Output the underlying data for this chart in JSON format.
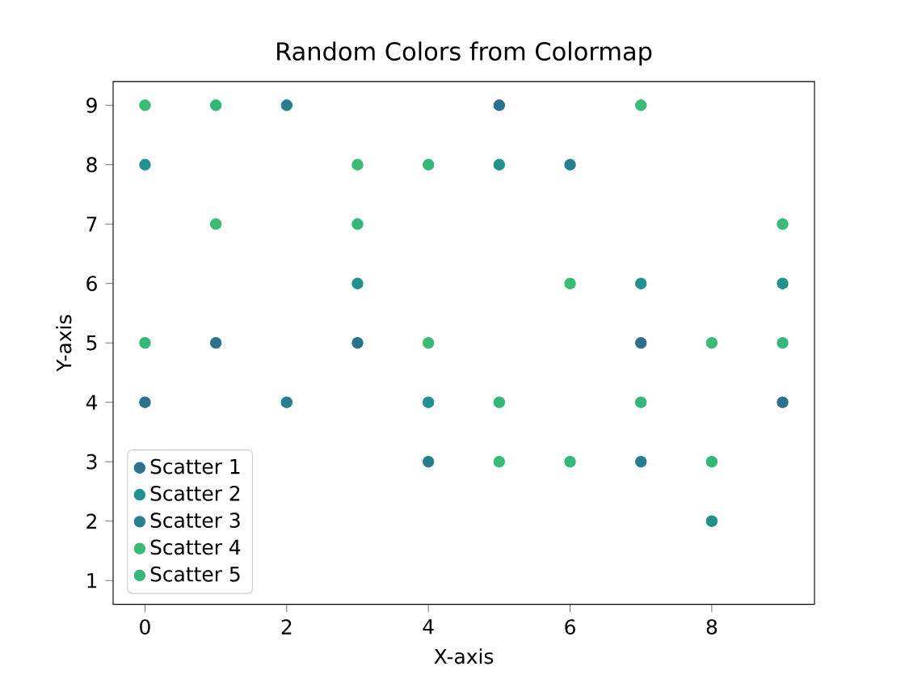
{
  "chart_data": {
    "type": "scatter",
    "title": "Random Colors from Colormap",
    "xlabel": "X-axis",
    "ylabel": "Y-axis",
    "xlim": [
      -0.45,
      9.45
    ],
    "ylim": [
      0.6,
      9.4
    ],
    "xticks": [
      0,
      2,
      4,
      6,
      8
    ],
    "yticks": [
      1,
      2,
      3,
      4,
      5,
      6,
      7,
      8,
      9
    ],
    "legend": "bottom left",
    "grid": false,
    "series": [
      {
        "name": "Scatter 1",
        "color": "#2c728e",
        "x": [
          0,
          1,
          3,
          5,
          7,
          9
        ],
        "values": [
          4,
          5,
          5,
          9,
          5,
          4
        ]
      },
      {
        "name": "Scatter 2",
        "color": "#21918c",
        "x": [
          0,
          3,
          4,
          5,
          7,
          8,
          9
        ],
        "values": [
          8,
          6,
          4,
          8,
          6,
          2,
          6
        ]
      },
      {
        "name": "Scatter 3",
        "color": "#277f8e",
        "x": [
          2,
          2,
          4,
          6,
          7
        ],
        "values": [
          9,
          4,
          3,
          8,
          3
        ]
      },
      {
        "name": "Scatter 4",
        "color": "#3bbb75",
        "x": [
          0,
          1,
          3,
          4,
          5,
          6,
          7,
          8,
          9
        ],
        "values": [
          9,
          7,
          8,
          5,
          3,
          6,
          9,
          5,
          7
        ]
      },
      {
        "name": "Scatter 5",
        "color": "#35b779",
        "x": [
          0,
          1,
          3,
          4,
          5,
          6,
          7,
          8,
          9
        ],
        "values": [
          5,
          9,
          7,
          8,
          4,
          3,
          4,
          3,
          5
        ]
      }
    ]
  }
}
